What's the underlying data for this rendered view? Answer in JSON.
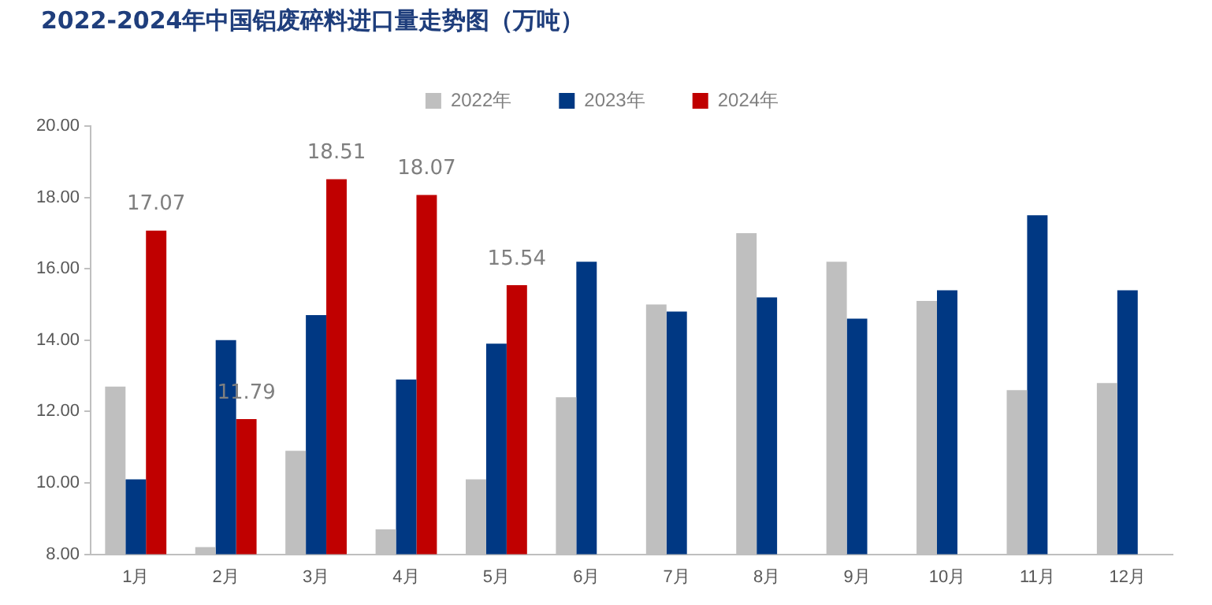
{
  "chart_data": {
    "type": "bar",
    "title": "2022-2024年中国铝废碎料进口量走势图（万吨）",
    "categories": [
      "1月",
      "2月",
      "3月",
      "4月",
      "5月",
      "6月",
      "7月",
      "8月",
      "9月",
      "10月",
      "11月",
      "12月"
    ],
    "series": [
      {
        "name": "2022年",
        "color": "#bfbfbf",
        "values": [
          12.7,
          8.2,
          10.9,
          8.7,
          10.1,
          12.4,
          15.0,
          17.0,
          16.2,
          15.1,
          12.6,
          12.8
        ]
      },
      {
        "name": "2023年",
        "color": "#003883",
        "values": [
          10.1,
          14.0,
          14.7,
          12.9,
          13.9,
          16.2,
          14.8,
          15.2,
          14.6,
          15.4,
          17.5,
          15.4
        ]
      },
      {
        "name": "2024年",
        "color": "#c00000",
        "values": [
          17.07,
          11.79,
          18.51,
          18.07,
          15.54,
          null,
          null,
          null,
          null,
          null,
          null,
          null
        ],
        "value_labels": [
          "17.07",
          "11.79",
          "18.51",
          "18.07",
          "15.54",
          null,
          null,
          null,
          null,
          null,
          null,
          null
        ]
      }
    ],
    "ylim": [
      8,
      20
    ],
    "yticks": [
      {
        "value": 8,
        "label": "8.00"
      },
      {
        "value": 10,
        "label": "10.00"
      },
      {
        "value": 12,
        "label": "12.00"
      },
      {
        "value": 14,
        "label": "14.00"
      },
      {
        "value": 16,
        "label": "16.00"
      },
      {
        "value": 18,
        "label": "18.00"
      },
      {
        "value": 20,
        "label": "20.00"
      }
    ],
    "grid": false,
    "legend": "top"
  }
}
